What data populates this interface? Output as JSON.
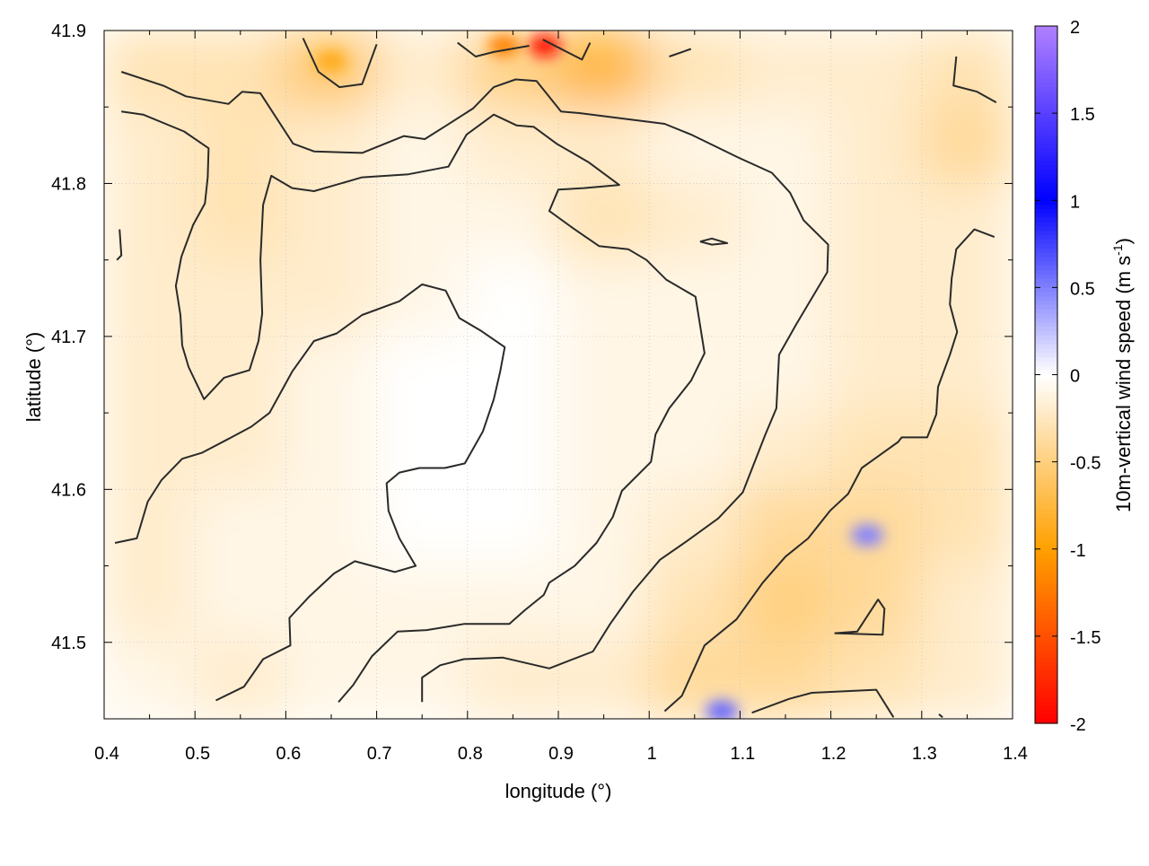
{
  "chart_data": {
    "type": "heatmap",
    "xlabel": "longitude (°)",
    "ylabel": "latitude (°)",
    "xlim": [
      0.4,
      1.4
    ],
    "ylim": [
      41.45,
      41.9
    ],
    "xticks": [
      "0.4",
      "0.5",
      "0.6",
      "0.7",
      "0.8",
      "0.9",
      "1",
      "1.1",
      "1.2",
      "1.3",
      "1.4"
    ],
    "yticks": [
      "41.5",
      "41.6",
      "41.7",
      "41.8",
      "41.9"
    ],
    "grid": true,
    "colorbar": {
      "label": "10m-vertical wind speed (m s",
      "label_sup": "-1",
      "label_end": ")",
      "range": [
        -2,
        2
      ],
      "ticks": [
        "2",
        "1.5",
        "1",
        "0.5",
        "0",
        "-0.5",
        "-1",
        "-1.5",
        "-2"
      ],
      "palette": [
        {
          "value": -2,
          "color": "#ff0000"
        },
        {
          "value": -1,
          "color": "#ffa000"
        },
        {
          "value": 0,
          "color": "#ffffff"
        },
        {
          "value": 1,
          "color": "#0000ff"
        },
        {
          "value": 2,
          "color": "#b080ff"
        }
      ]
    },
    "heatmap_grid": {
      "lon_centers": [
        0.45,
        0.55,
        0.65,
        0.75,
        0.85,
        0.95,
        1.05,
        1.15,
        1.25,
        1.35
      ],
      "lat_centers": [
        41.875,
        41.825,
        41.775,
        41.725,
        41.675,
        41.625,
        41.575,
        41.525,
        41.475
      ],
      "values": [
        [
          -0.3,
          -0.3,
          -0.6,
          -0.2,
          -0.5,
          -0.8,
          -0.3,
          -0.2,
          -0.2,
          -0.3
        ],
        [
          -0.2,
          -0.3,
          -0.2,
          -0.1,
          -0.2,
          -0.2,
          -0.1,
          -0.1,
          -0.2,
          -0.4
        ],
        [
          -0.2,
          -0.3,
          -0.2,
          -0.1,
          -0.1,
          -0.3,
          -0.2,
          -0.1,
          -0.2,
          -0.2
        ],
        [
          -0.2,
          -0.2,
          -0.2,
          -0.1,
          0,
          -0.1,
          -0.1,
          -0.1,
          -0.2,
          -0.2
        ],
        [
          -0.2,
          -0.2,
          -0.1,
          0,
          0,
          -0.1,
          -0.1,
          -0.1,
          -0.2,
          -0.2
        ],
        [
          -0.2,
          -0.2,
          -0.1,
          0,
          0,
          -0.1,
          -0.1,
          -0.2,
          -0.3,
          -0.3
        ],
        [
          -0.2,
          -0.1,
          -0.1,
          0,
          0,
          -0.1,
          -0.2,
          -0.4,
          -0.4,
          -0.3
        ],
        [
          -0.2,
          -0.1,
          -0.1,
          -0.1,
          -0.1,
          -0.1,
          -0.3,
          -0.5,
          -0.4,
          -0.2
        ],
        [
          -0.1,
          -0.2,
          -0.1,
          -0.1,
          -0.2,
          -0.2,
          -0.4,
          -0.4,
          -0.3,
          -0.2
        ]
      ],
      "peaks": [
        {
          "lon": 0.885,
          "lat": 41.89,
          "value": -1.9
        },
        {
          "lon": 0.84,
          "lat": 41.89,
          "value": -1.2
        },
        {
          "lon": 0.65,
          "lat": 41.88,
          "value": -0.9
        },
        {
          "lon": 1.24,
          "lat": 41.57,
          "value": 0.5
        },
        {
          "lon": 1.08,
          "lat": 41.455,
          "value": 0.6
        }
      ]
    },
    "contours": [
      [
        [
          0.419,
          41.873
        ],
        [
          0.465,
          41.864
        ],
        [
          0.49,
          41.857
        ],
        [
          0.537,
          41.852
        ],
        [
          0.552,
          41.86
        ],
        [
          0.572,
          41.859
        ],
        [
          0.608,
          41.826
        ],
        [
          0.631,
          41.821
        ],
        [
          0.684,
          41.82
        ],
        [
          0.73,
          41.831
        ],
        [
          0.753,
          41.829
        ],
        [
          0.777,
          41.838
        ],
        [
          0.806,
          41.849
        ],
        [
          0.829,
          41.863
        ],
        [
          0.853,
          41.868
        ],
        [
          0.876,
          41.867
        ],
        [
          0.903,
          41.847
        ],
        [
          0.923,
          41.846
        ],
        [
          1.017,
          41.839
        ],
        [
          1.046,
          41.832
        ],
        [
          1.098,
          41.817
        ],
        [
          1.135,
          41.807
        ],
        [
          1.155,
          41.794
        ],
        [
          1.17,
          41.776
        ],
        [
          1.197,
          41.76
        ],
        [
          1.196,
          41.742
        ],
        [
          1.162,
          41.708
        ],
        [
          1.143,
          41.688
        ],
        [
          1.14,
          41.653
        ],
        [
          1.128,
          41.636
        ],
        [
          1.103,
          41.598
        ],
        [
          1.076,
          41.581
        ],
        [
          1.041,
          41.566
        ],
        [
          1.012,
          41.554
        ],
        [
          0.982,
          41.533
        ],
        [
          0.957,
          41.512
        ],
        [
          0.938,
          41.494
        ],
        [
          0.89,
          41.483
        ],
        [
          0.839,
          41.49
        ],
        [
          0.796,
          41.489
        ],
        [
          0.77,
          41.485
        ],
        [
          0.75,
          41.477
        ],
        [
          0.75,
          41.461
        ]
      ],
      [
        [
          0.419,
          41.847
        ],
        [
          0.443,
          41.845
        ],
        [
          0.488,
          41.834
        ],
        [
          0.515,
          41.823
        ],
        [
          0.514,
          41.804
        ],
        [
          0.511,
          41.787
        ],
        [
          0.498,
          41.773
        ],
        [
          0.485,
          41.752
        ],
        [
          0.479,
          41.733
        ],
        [
          0.484,
          41.714
        ],
        [
          0.486,
          41.694
        ],
        [
          0.493,
          41.68
        ],
        [
          0.51,
          41.659
        ],
        [
          0.532,
          41.673
        ],
        [
          0.56,
          41.678
        ],
        [
          0.57,
          41.697
        ],
        [
          0.574,
          41.715
        ],
        [
          0.572,
          41.75
        ],
        [
          0.575,
          41.786
        ],
        [
          0.584,
          41.805
        ],
        [
          0.607,
          41.797
        ],
        [
          0.631,
          41.795
        ],
        [
          0.684,
          41.804
        ],
        [
          0.735,
          41.806
        ],
        [
          0.779,
          41.811
        ],
        [
          0.799,
          41.832
        ],
        [
          0.829,
          41.845
        ],
        [
          0.854,
          41.838
        ],
        [
          0.873,
          41.837
        ],
        [
          0.898,
          41.826
        ],
        [
          0.933,
          41.814
        ],
        [
          0.967,
          41.799
        ],
        [
          0.928,
          41.797
        ],
        [
          0.9,
          41.796
        ],
        [
          0.89,
          41.782
        ],
        [
          0.918,
          41.77
        ],
        [
          0.945,
          41.759
        ],
        [
          0.977,
          41.757
        ],
        [
          0.997,
          41.75
        ],
        [
          1.019,
          41.737
        ],
        [
          1.051,
          41.726
        ],
        [
          1.061,
          41.689
        ],
        [
          1.046,
          41.671
        ],
        [
          1.022,
          41.653
        ],
        [
          1.007,
          41.636
        ],
        [
          1.002,
          41.618
        ],
        [
          0.97,
          41.599
        ],
        [
          0.96,
          41.582
        ],
        [
          0.942,
          41.565
        ],
        [
          0.918,
          41.55
        ],
        [
          0.89,
          41.539
        ],
        [
          0.884,
          41.531
        ],
        [
          0.863,
          41.521
        ],
        [
          0.846,
          41.512
        ],
        [
          0.796,
          41.512
        ],
        [
          0.755,
          41.508
        ],
        [
          0.723,
          41.507
        ],
        [
          0.695,
          41.491
        ],
        [
          0.674,
          41.472
        ],
        [
          0.658,
          41.461
        ]
      ],
      [
        [
          0.523,
          41.462
        ],
        [
          0.554,
          41.471
        ],
        [
          0.575,
          41.489
        ],
        [
          0.605,
          41.498
        ],
        [
          0.604,
          41.516
        ],
        [
          0.626,
          41.53
        ],
        [
          0.653,
          41.545
        ],
        [
          0.676,
          41.553
        ],
        [
          0.72,
          41.546
        ],
        [
          0.743,
          41.55
        ],
        [
          0.725,
          41.568
        ],
        [
          0.713,
          41.586
        ],
        [
          0.711,
          41.604
        ],
        [
          0.725,
          41.611
        ],
        [
          0.747,
          41.614
        ],
        [
          0.775,
          41.614
        ],
        [
          0.797,
          41.617
        ],
        [
          0.817,
          41.638
        ],
        [
          0.829,
          41.659
        ],
        [
          0.836,
          41.677
        ],
        [
          0.841,
          41.693
        ],
        [
          0.814,
          41.704
        ],
        [
          0.791,
          41.712
        ],
        [
          0.776,
          41.73
        ],
        [
          0.75,
          41.734
        ],
        [
          0.725,
          41.723
        ],
        [
          0.684,
          41.714
        ],
        [
          0.656,
          41.702
        ],
        [
          0.631,
          41.697
        ],
        [
          0.607,
          41.677
        ],
        [
          0.582,
          41.65
        ],
        [
          0.562,
          41.641
        ],
        [
          0.54,
          41.634
        ],
        [
          0.508,
          41.624
        ],
        [
          0.486,
          41.62
        ],
        [
          0.463,
          41.606
        ],
        [
          0.448,
          41.592
        ],
        [
          0.436,
          41.568
        ],
        [
          0.412,
          41.565
        ]
      ],
      [
        [
          1.017,
          41.455
        ],
        [
          1.036,
          41.465
        ],
        [
          1.061,
          41.498
        ],
        [
          1.096,
          41.515
        ],
        [
          1.125,
          41.539
        ],
        [
          1.15,
          41.556
        ],
        [
          1.175,
          41.568
        ],
        [
          1.199,
          41.586
        ],
        [
          1.219,
          41.597
        ],
        [
          1.234,
          41.614
        ],
        [
          1.274,
          41.631
        ],
        [
          1.278,
          41.634
        ],
        [
          1.306,
          41.634
        ],
        [
          1.316,
          41.649
        ],
        [
          1.318,
          41.667
        ],
        [
          1.331,
          41.688
        ],
        [
          1.339,
          41.703
        ],
        [
          1.331,
          41.721
        ],
        [
          1.333,
          41.738
        ],
        [
          1.338,
          41.757
        ],
        [
          1.358,
          41.77
        ],
        [
          1.38,
          41.765
        ]
      ],
      [
        [
          0.619,
          41.895
        ],
        [
          0.636,
          41.873
        ],
        [
          0.659,
          41.863
        ],
        [
          0.684,
          41.865
        ],
        [
          0.7,
          41.891
        ]
      ],
      [
        [
          0.789,
          41.892
        ],
        [
          0.809,
          41.883
        ],
        [
          0.829,
          41.886
        ],
        [
          0.868,
          41.89
        ]
      ],
      [
        [
          0.883,
          41.894
        ],
        [
          0.926,
          41.881
        ],
        [
          0.935,
          41.892
        ]
      ],
      [
        [
          1.022,
          41.883
        ],
        [
          1.046,
          41.888
        ]
      ],
      [
        [
          1.338,
          41.883
        ],
        [
          1.335,
          41.864
        ],
        [
          1.361,
          41.86
        ],
        [
          1.382,
          41.853
        ]
      ],
      [
        [
          0.417,
          41.77
        ],
        [
          0.419,
          41.753
        ],
        [
          0.414,
          41.75
        ]
      ],
      [
        [
          1.056,
          41.762
        ],
        [
          1.069,
          41.764
        ],
        [
          1.086,
          41.761
        ],
        [
          1.069,
          41.76
        ],
        [
          1.056,
          41.762
        ]
      ],
      [
        [
          1.204,
          41.506
        ],
        [
          1.229,
          41.507
        ],
        [
          1.252,
          41.528
        ],
        [
          1.259,
          41.522
        ],
        [
          1.257,
          41.505
        ],
        [
          1.204,
          41.506
        ]
      ],
      [
        [
          1.113,
          41.454
        ],
        [
          1.154,
          41.463
        ],
        [
          1.179,
          41.467
        ],
        [
          1.25,
          41.469
        ],
        [
          1.269,
          41.451
        ]
      ],
      [
        [
          1.319,
          41.453
        ],
        [
          1.323,
          41.451
        ]
      ]
    ]
  }
}
